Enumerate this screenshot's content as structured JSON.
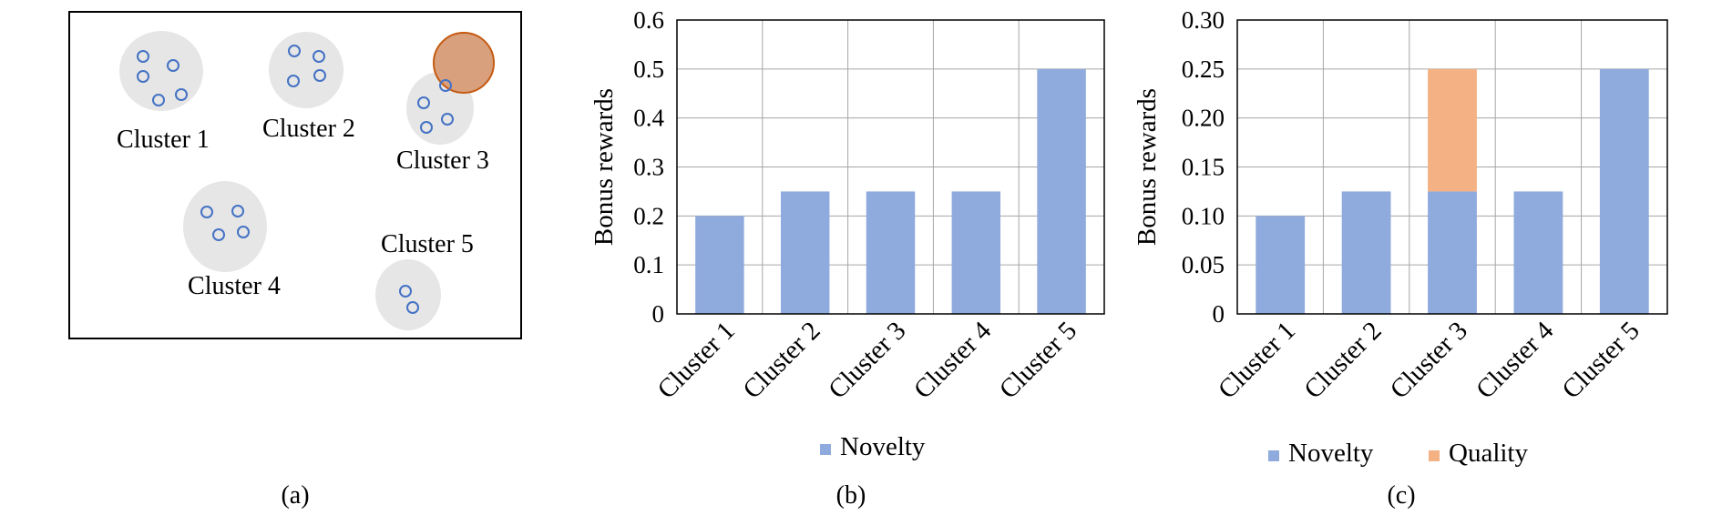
{
  "panel_a": {
    "caption": "(a)",
    "point_color": "#4472C4",
    "blob_color": "#E6E6E6",
    "highlight_fill": "#D9A07E",
    "highlight_stroke": "#C55A11",
    "clusters": [
      {
        "label": "Cluster 1",
        "points": 5
      },
      {
        "label": "Cluster 2",
        "points": 4
      },
      {
        "label": "Cluster 3",
        "points": 4
      },
      {
        "label": "Cluster 4",
        "points": 4
      },
      {
        "label": "Cluster 5",
        "points": 2
      }
    ]
  },
  "chart_data": [
    {
      "type": "bar",
      "caption": "(b)",
      "categories": [
        "Cluster 1",
        "Cluster 2",
        "Cluster 3",
        "Cluster 4",
        "Cluster 5"
      ],
      "series": [
        {
          "name": "Novelty",
          "values": [
            0.2,
            0.25,
            0.25,
            0.25,
            0.5
          ],
          "color": "#8FAADC"
        }
      ],
      "ylabel": "Bonus rewards",
      "ylim": [
        0,
        0.6
      ],
      "yticks": [
        0,
        0.1,
        0.2,
        0.3,
        0.4,
        0.5,
        0.6
      ],
      "ytick_labels": [
        "0",
        "0.1",
        "0.2",
        "0.3",
        "0.4",
        "0.5",
        "0.6"
      ],
      "grid": true,
      "legend": "bottom"
    },
    {
      "type": "bar",
      "stacked": true,
      "caption": "(c)",
      "categories": [
        "Cluster 1",
        "Cluster 2",
        "Cluster 3",
        "Cluster 4",
        "Cluster 5"
      ],
      "series": [
        {
          "name": "Novelty",
          "values": [
            0.1,
            0.125,
            0.125,
            0.125,
            0.25
          ],
          "color": "#8FAADC"
        },
        {
          "name": "Quality",
          "values": [
            0,
            0,
            0.125,
            0,
            0
          ],
          "color": "#F4B183"
        }
      ],
      "ylabel": "Bonus rewards",
      "ylim": [
        0,
        0.3
      ],
      "yticks": [
        0,
        0.05,
        0.1,
        0.15,
        0.2,
        0.25,
        0.3
      ],
      "ytick_labels": [
        "0",
        "0.05",
        "0.10",
        "0.15",
        "0.20",
        "0.25",
        "0.30"
      ],
      "grid": true,
      "legend": "bottom"
    }
  ]
}
